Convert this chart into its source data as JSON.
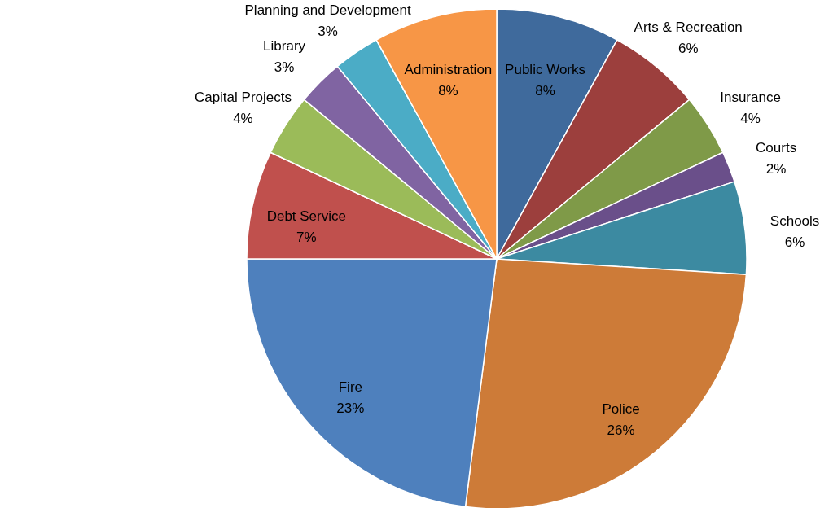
{
  "chart_data": {
    "type": "pie",
    "categories": [
      "Public Works",
      "Arts & Recreation",
      "Insurance",
      "Courts",
      "Schools",
      "Police",
      "Fire",
      "Debt Service",
      "Capital Projects",
      "Library",
      "Planning and Development",
      "Administration"
    ],
    "values": [
      8,
      6,
      4,
      2,
      6,
      26,
      23,
      7,
      4,
      3,
      3,
      8
    ],
    "value_labels": [
      "8%",
      "6%",
      "4%",
      "2%",
      "6%",
      "26%",
      "23%",
      "7%",
      "4%",
      "3%",
      "3%",
      "8%"
    ],
    "colors": [
      "#3f6a9c",
      "#9c3f3d",
      "#7f9a48",
      "#6a4f8a",
      "#3c8aa1",
      "#cd7b38",
      "#4e80bd",
      "#c0504d",
      "#9bbb59",
      "#8064a2",
      "#4bacc6",
      "#f79646"
    ]
  }
}
